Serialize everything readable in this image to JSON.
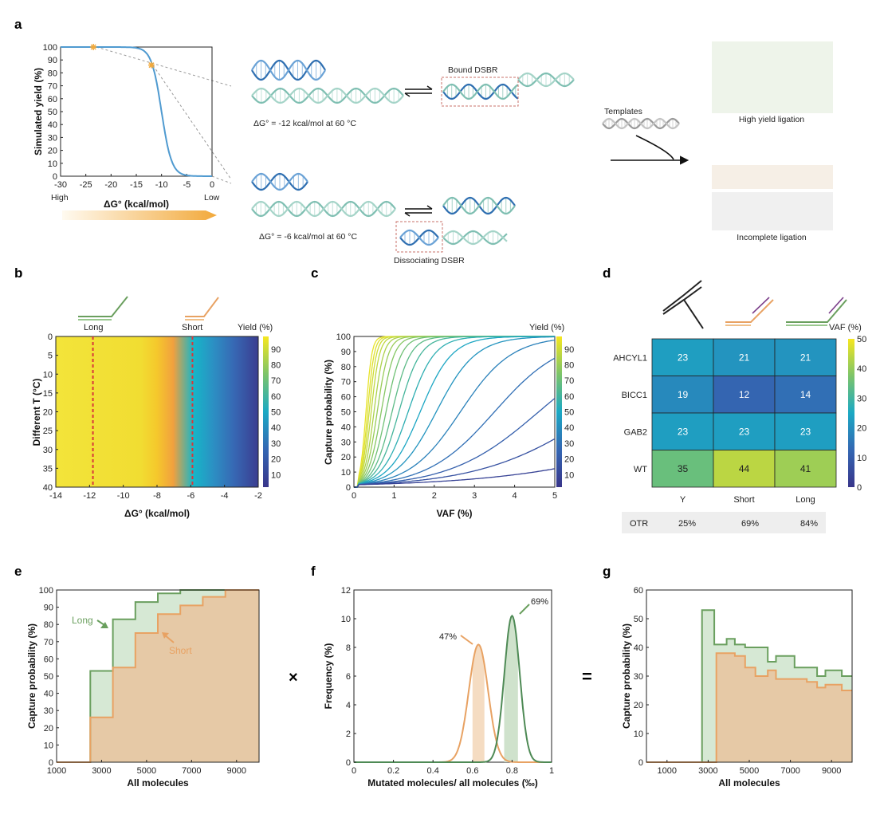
{
  "panel_labels": [
    "a",
    "b",
    "c",
    "d",
    "e",
    "f",
    "g"
  ],
  "colors": {
    "accent_blue": "#4f9ad0",
    "long_green": "#6a9f5e",
    "short_orange": "#e8a263",
    "long_fill": "#d6e8d4",
    "short_fill": "#e6c9a6",
    "dashed_red": "#d8363a",
    "yield_gradient_start": "#fad4a0",
    "yield_gradient_end": "#f2a93b"
  },
  "icons": [
    "equilibrium-arrows-icon",
    "y-adapter-icon",
    "short-probe-icon",
    "long-probe-icon",
    "dna-helix-icon"
  ],
  "schematic": {
    "bound_label": "Bound DSBR",
    "bound_dg": "ΔG° = -12 kcal/mol at 60 °C",
    "dissoc_dg": "ΔG° = -6 kcal/mol at 60 °C",
    "dissoc_label": "Dissociating DSBR",
    "templates": "Templates",
    "high_yield": "High yield ligation",
    "incomplete": "Incomplete ligation",
    "high": "High",
    "low": "Low"
  },
  "heatmap_d": {
    "rows": [
      "AHCYL1",
      "BICC1",
      "GAB2",
      "WT"
    ],
    "cols": [
      "Y",
      "Short",
      "Long"
    ],
    "values": [
      [
        23,
        21,
        21
      ],
      [
        19,
        12,
        14
      ],
      [
        23,
        23,
        23
      ],
      [
        35,
        44,
        41
      ]
    ],
    "colorbar_label": "VAF (%)",
    "colorbar_ticks": [
      "50",
      "40",
      "30",
      "20",
      "10",
      "0"
    ],
    "otr_label": "OTR",
    "otr_values": [
      "25%",
      "69%",
      "84%"
    ]
  },
  "chart_data": [
    {
      "panel": "a",
      "type": "line",
      "title": "",
      "xlabel": "ΔG° (kcal/mol)",
      "ylabel": "Simulated yield (%)",
      "xlim": [
        -30,
        0
      ],
      "ylim": [
        0,
        100
      ],
      "xticks": [
        "-30",
        "-25",
        "-20",
        "-15",
        "-10",
        "-5",
        "0"
      ],
      "yticks": [
        "100",
        "90",
        "80",
        "70",
        "60",
        "50",
        "40",
        "30",
        "20",
        "10",
        "0"
      ],
      "markers": [
        {
          "x": -23.5,
          "y": 100
        },
        {
          "x": -12,
          "y": 86
        }
      ],
      "curve_midpoint_dg": -10,
      "curve_slope_per_kcal": 1.0
    },
    {
      "panel": "b",
      "type": "heatmap",
      "xlabel": "ΔG° (kcal/mol)",
      "ylabel": "Different T (°C)",
      "xlim": [
        -14,
        -2
      ],
      "ylim": [
        0,
        40
      ],
      "xticks": [
        "-14",
        "-12",
        "-10",
        "-8",
        "-6",
        "-4",
        "-2"
      ],
      "yticks": [
        "0",
        "5",
        "10",
        "15",
        "20",
        "25",
        "30",
        "35",
        "40"
      ],
      "colorbar_label": "Yield (%)",
      "colorbar_ticks": [
        "90",
        "80",
        "70",
        "60",
        "50",
        "40",
        "30",
        "20",
        "10"
      ],
      "probe_labels": [
        "Long",
        "Short"
      ],
      "dashed_lines_x": [
        -11.8,
        -5.9
      ]
    },
    {
      "panel": "c",
      "type": "line",
      "xlabel": "VAF (%)",
      "ylabel": "Capture probability (%)",
      "xlim": [
        0,
        5
      ],
      "ylim": [
        0,
        100
      ],
      "xticks": [
        "0",
        "1",
        "2",
        "3",
        "4",
        "5"
      ],
      "yticks": [
        "0",
        "10",
        "20",
        "30",
        "40",
        "50",
        "60",
        "70",
        "80",
        "90",
        "100"
      ],
      "colorbar_label": "Yield (%)",
      "colorbar_ticks": [
        "90",
        "80",
        "70",
        "60",
        "50",
        "40",
        "30",
        "20",
        "10"
      ],
      "curves_midpoint_vaf": [
        0.3,
        0.34,
        0.38,
        0.43,
        0.5,
        0.58,
        0.68,
        0.8,
        0.95,
        1.12,
        1.35,
        1.65,
        2.05,
        2.65,
        3.5,
        4.6,
        6.1,
        9.5
      ],
      "curves_yield": [
        97,
        95,
        92,
        89,
        85,
        81,
        77,
        72,
        67,
        61,
        55,
        49,
        42,
        35,
        28,
        21,
        14,
        7
      ]
    },
    {
      "panel": "e",
      "type": "area",
      "xlabel": "All molecules",
      "ylabel": "Capture probability (%)",
      "xlim": [
        1000,
        10000
      ],
      "ylim": [
        0,
        100
      ],
      "xticks": [
        "1000",
        "3000",
        "5000",
        "7000",
        "9000"
      ],
      "yticks": [
        "0",
        "10",
        "20",
        "30",
        "40",
        "50",
        "60",
        "70",
        "80",
        "90",
        "100"
      ],
      "annotations": [
        "Long",
        "Short"
      ],
      "series": [
        {
          "name": "Long",
          "x": [
            1000,
            2500,
            2500,
            3500,
            3500,
            4500,
            4500,
            5500,
            5500,
            6500,
            6500,
            7500,
            7500,
            8500,
            8500,
            10000
          ],
          "y": [
            0,
            0,
            53,
            53,
            83,
            83,
            93,
            93,
            98,
            98,
            100,
            100,
            100,
            100,
            100,
            100
          ]
        },
        {
          "name": "Short",
          "x": [
            1000,
            2500,
            2500,
            3500,
            3500,
            4500,
            4500,
            5500,
            5500,
            6500,
            6500,
            7500,
            7500,
            8500,
            8500,
            10000
          ],
          "y": [
            0,
            0,
            26,
            26,
            55,
            55,
            75,
            75,
            86,
            86,
            91,
            91,
            96,
            96,
            100,
            100
          ]
        }
      ]
    },
    {
      "panel": "f",
      "type": "line",
      "xlabel": "Mutated molecules/ all molecules (‰)",
      "ylabel": "Frequency (%)",
      "xlim": [
        0,
        1
      ],
      "ylim": [
        0,
        12
      ],
      "xticks": [
        "0",
        "0.2",
        "0.4",
        "0.6",
        "0.8",
        "1"
      ],
      "yticks": [
        "0",
        "2",
        "4",
        "6",
        "8",
        "10",
        "12"
      ],
      "annotations": [
        "47%",
        "69%"
      ],
      "series": [
        {
          "name": "Short",
          "mean": 0.63,
          "sd": 0.049,
          "peak": 8.2,
          "shaded_range": [
            0.6,
            0.66
          ]
        },
        {
          "name": "Long",
          "mean": 0.8,
          "sd": 0.039,
          "peak": 10.2,
          "shaded_range": [
            0.76,
            0.83
          ]
        }
      ]
    },
    {
      "panel": "g",
      "type": "area",
      "xlabel": "All molecules",
      "ylabel": "Capture probability (%)",
      "xlim": [
        0,
        10000
      ],
      "ylim": [
        0,
        60
      ],
      "xticks": [
        "1000",
        "3000",
        "5000",
        "7000",
        "9000"
      ],
      "tick_values": [
        1000,
        3000,
        5000,
        7000,
        9000
      ],
      "yticks": [
        "0",
        "10",
        "20",
        "30",
        "40",
        "50",
        "60"
      ],
      "series": [
        {
          "name": "Long",
          "x": [
            0,
            2700,
            2700,
            3300,
            3300,
            3900,
            3900,
            4300,
            4300,
            4800,
            4800,
            5300,
            5300,
            5900,
            5900,
            6300,
            6300,
            7200,
            7200,
            7800,
            7800,
            8300,
            8300,
            8700,
            8700,
            9500,
            9500,
            10000
          ],
          "y": [
            0,
            0,
            53,
            53,
            41,
            41,
            43,
            43,
            41,
            41,
            40,
            40,
            40,
            40,
            35,
            35,
            37,
            37,
            33,
            33,
            33,
            33,
            30,
            30,
            32,
            32,
            30,
            30
          ]
        },
        {
          "name": "Short",
          "x": [
            0,
            3400,
            3400,
            4300,
            4300,
            4800,
            4800,
            5300,
            5300,
            5900,
            5900,
            6300,
            6300,
            7200,
            7200,
            7800,
            7800,
            8300,
            8300,
            8700,
            8700,
            9500,
            9500,
            10000
          ],
          "y": [
            0,
            0,
            38,
            38,
            37,
            37,
            33,
            33,
            30,
            30,
            32,
            32,
            29,
            29,
            29,
            29,
            28,
            28,
            26,
            26,
            27,
            27,
            25,
            25
          ]
        }
      ]
    }
  ]
}
